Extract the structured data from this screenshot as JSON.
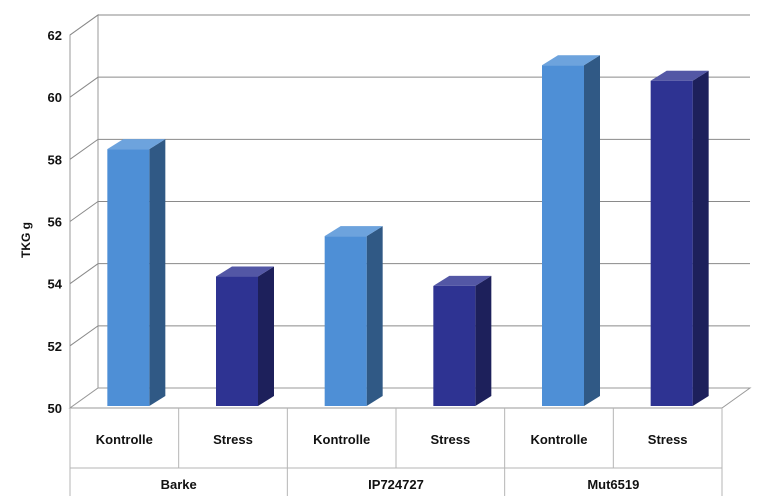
{
  "chart_data": {
    "type": "bar",
    "title": "",
    "xlabel": "",
    "ylabel": "TKG g",
    "ylim": [
      50,
      62
    ],
    "yticks": [
      50,
      52,
      54,
      56,
      58,
      60,
      62
    ],
    "grid": true,
    "groups": [
      {
        "label": "Barke",
        "bars": [
          {
            "category": "Kontrolle",
            "value": 58.2,
            "color": "#4e8fd6"
          },
          {
            "category": "Stress",
            "value": 54.1,
            "color": "#2e3392"
          }
        ]
      },
      {
        "label": "IP724727",
        "bars": [
          {
            "category": "Kontrolle",
            "value": 55.4,
            "color": "#4e8fd6"
          },
          {
            "category": "Stress",
            "value": 53.8,
            "color": "#2e3392"
          }
        ]
      },
      {
        "label": "Mut6519",
        "bars": [
          {
            "category": "Kontrolle",
            "value": 60.9,
            "color": "#4e8fd6"
          },
          {
            "category": "Stress",
            "value": 60.4,
            "color": "#2e3392"
          }
        ]
      }
    ]
  }
}
